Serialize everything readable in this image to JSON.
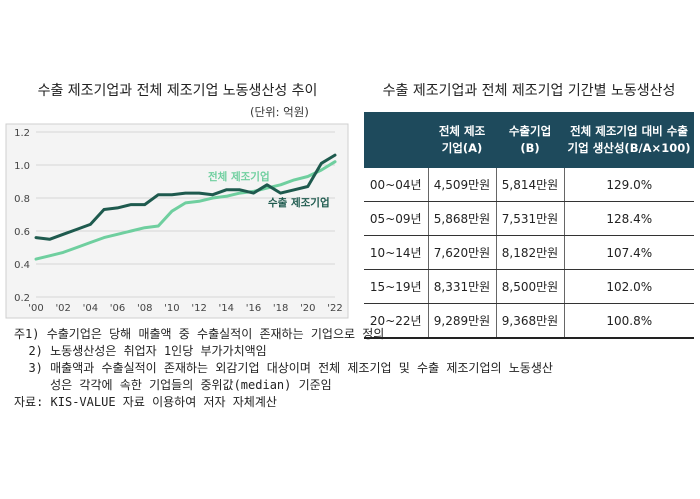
{
  "chart_title": "수출 제조기업과 전체 제조기업 노동생산성 추이",
  "unit_note": "(단위: 억원)",
  "chart_data": {
    "type": "line",
    "x": [
      "'00",
      "'01",
      "'02",
      "'03",
      "'04",
      "'05",
      "'06",
      "'07",
      "'08",
      "'09",
      "'10",
      "'11",
      "'12",
      "'13",
      "'14",
      "'15",
      "'16",
      "'17",
      "'18",
      "'19",
      "'20",
      "'21",
      "'22"
    ],
    "x_tick_labels": [
      "'00",
      "'02",
      "'04",
      "'06",
      "'08",
      "'10",
      "'12",
      "'14",
      "'16",
      "'18",
      "'20",
      "'22"
    ],
    "y_ticks": [
      "0.2",
      "0.4",
      "0.6",
      "0.8",
      "1.0",
      "1.2"
    ],
    "ylim": [
      0.2,
      1.2
    ],
    "grid": true,
    "series": [
      {
        "name": "전체 제조기업",
        "color": "#6fcf9f",
        "values": [
          0.43,
          0.45,
          0.47,
          0.5,
          0.53,
          0.56,
          0.58,
          0.6,
          0.62,
          0.63,
          0.72,
          0.77,
          0.78,
          0.8,
          0.81,
          0.83,
          0.84,
          0.86,
          0.88,
          0.91,
          0.93,
          0.97,
          1.02
        ]
      },
      {
        "name": "수출 제조기업",
        "color": "#1e5a4e",
        "values": [
          0.56,
          0.55,
          0.58,
          0.61,
          0.64,
          0.73,
          0.74,
          0.76,
          0.76,
          0.82,
          0.82,
          0.83,
          0.83,
          0.82,
          0.85,
          0.85,
          0.83,
          0.88,
          0.83,
          0.85,
          0.87,
          1.01,
          1.06
        ]
      }
    ]
  },
  "table_title": "수출 제조기업과 전체 제조기업 기간별 노동생산성",
  "table": {
    "headers": [
      "",
      "전체 제조\n기업(A)",
      "수출기업\n(B)",
      "전체 제조기업 대비 수출\n기업 생산성(B/A×100)"
    ],
    "rows": [
      [
        "00~04년",
        "4,509만원",
        "5,814만원",
        "129.0%"
      ],
      [
        "05~09년",
        "5,868만원",
        "7,531만원",
        "128.4%"
      ],
      [
        "10~14년",
        "7,620만원",
        "8,182만원",
        "107.4%"
      ],
      [
        "15~19년",
        "8,331만원",
        "8,500만원",
        "102.0%"
      ],
      [
        "20~22년",
        "9,289만원",
        "9,368만원",
        "100.8%"
      ]
    ]
  },
  "notes": [
    "주1) 수출기업은 당해 매출액 중 수출실적이 존재하는 기업으로 정의",
    "  2) 노동생산성은 취업자 1인당 부가가치액임",
    "  3) 매출액과 수출실적이 존재하는 외감기업 대상이며 전체 제조기업 및 수출 제조기업의 노동생산",
    "     성은 각각에 속한 기업들의 중위값(median) 기준임",
    "자료: KIS-VALUE 자료 이용하여 저자 자체계산"
  ]
}
